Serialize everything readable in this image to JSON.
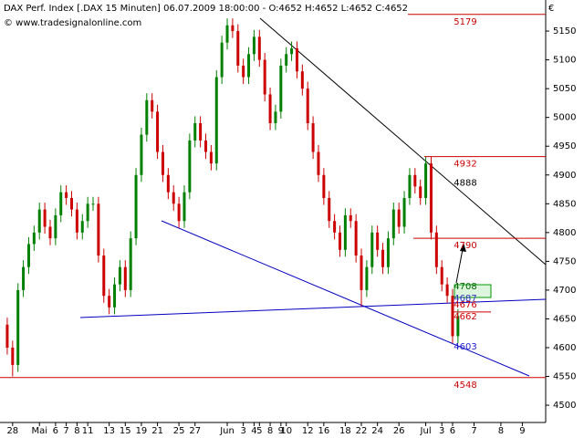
{
  "chart_data": {
    "type": "candlestick",
    "title": "DAX Perf. Index [.DAX  15 Minuten] 06.07.2009 18:00:00 - O:4652 H:4652 L:4652 C:4652",
    "subtitle": "© www.tradesignalonline.com",
    "y_unit": "€",
    "ylim": [
      4470,
      5204
    ],
    "yticks": [
      4500,
      4550,
      4600,
      4650,
      4700,
      4750,
      4800,
      4850,
      4900,
      4950,
      5000,
      5050,
      5100,
      5150
    ],
    "up_color": "#008000",
    "down_color": "#cc0000",
    "categories": [
      null,
      "28",
      null,
      null,
      null,
      null,
      "Mai",
      null,
      null,
      "6",
      null,
      "7",
      null,
      "8",
      null,
      "11",
      null,
      null,
      null,
      "13",
      null,
      null,
      "15",
      null,
      null,
      "19",
      null,
      null,
      "21",
      null,
      null,
      null,
      "25",
      null,
      null,
      "27",
      null,
      null,
      null,
      null,
      null,
      "Jun",
      null,
      null,
      "3",
      null,
      "4",
      "5",
      null,
      "8",
      null,
      "9",
      "10",
      null,
      null,
      null,
      "12",
      null,
      null,
      "16",
      null,
      null,
      null,
      "18",
      null,
      null,
      "22",
      null,
      null,
      "24",
      null,
      null,
      null,
      "26",
      null,
      null,
      null,
      null,
      "Jul",
      null,
      null,
      "3",
      null,
      "6",
      null,
      null,
      null,
      "7",
      null,
      null,
      null,
      null,
      "8",
      null,
      null,
      null,
      "9",
      null,
      null,
      null
    ],
    "open": [
      4640,
      4600,
      4570,
      4700,
      4740,
      4780,
      4800,
      4840,
      4810,
      4790,
      4830,
      4870,
      4860,
      4840,
      4800,
      4820,
      4850,
      4850,
      4760,
      4690,
      4670,
      4710,
      4740,
      4700,
      4790,
      4900,
      4970,
      5030,
      5010,
      4940,
      4900,
      4870,
      4850,
      4820,
      4870,
      4960,
      4990,
      4960,
      4940,
      4920,
      5070,
      5130,
      5160,
      5150,
      5090,
      5070,
      5110,
      5140,
      5100,
      5040,
      4990,
      5010,
      5090,
      5110,
      5120,
      5080,
      5050,
      4990,
      4940,
      4900,
      4860,
      4820,
      4800,
      4770,
      4830,
      4820,
      4760,
      4700,
      4740,
      4800,
      4770,
      4740,
      4790,
      4840,
      4810,
      4860,
      4900,
      4880,
      4860,
      4920,
      4800,
      4740,
      4710,
      4690,
      4620,
      null,
      null,
      null,
      null,
      null,
      null,
      null,
      null,
      null,
      null,
      null,
      null,
      null,
      null,
      null
    ],
    "high": [
      4652,
      4612,
      4712,
      4752,
      4792,
      4812,
      4852,
      4852,
      4822,
      4842,
      4882,
      4882,
      4872,
      4852,
      4832,
      4862,
      4862,
      4862,
      4772,
      4702,
      4722,
      4752,
      4752,
      4802,
      4912,
      4982,
      5042,
      5042,
      5022,
      4952,
      4912,
      4882,
      4862,
      4882,
      4972,
      5002,
      5002,
      4972,
      4952,
      5082,
      5142,
      5172,
      5172,
      5162,
      5102,
      5122,
      5152,
      5152,
      5112,
      5052,
      5022,
      5102,
      5122,
      5132,
      5132,
      5092,
      5062,
      5002,
      4952,
      4912,
      4872,
      4832,
      4812,
      4842,
      4842,
      4832,
      4772,
      4752,
      4812,
      4812,
      4782,
      4802,
      4852,
      4852,
      4872,
      4912,
      4912,
      4892,
      4932,
      4932,
      4812,
      4752,
      4722,
      4702,
      4667,
      null,
      null,
      null,
      null,
      null,
      null,
      null,
      null,
      null,
      null,
      null,
      null,
      null,
      null,
      null
    ],
    "low": [
      4588,
      4550,
      4558,
      4688,
      4728,
      4768,
      4788,
      4798,
      4778,
      4778,
      4818,
      4848,
      4828,
      4788,
      4788,
      4808,
      4838,
      4748,
      4678,
      4658,
      4658,
      4698,
      4688,
      4688,
      4778,
      4888,
      4958,
      4998,
      4928,
      4888,
      4858,
      4838,
      4808,
      4808,
      4858,
      4948,
      4948,
      4928,
      4908,
      4908,
      5058,
      5118,
      5138,
      5078,
      5058,
      5058,
      5098,
      5088,
      5028,
      4978,
      4978,
      4998,
      5078,
      5098,
      5068,
      5038,
      4978,
      4928,
      4888,
      4848,
      4808,
      4788,
      4758,
      4758,
      4808,
      4748,
      4672,
      4688,
      4728,
      4758,
      4728,
      4728,
      4778,
      4798,
      4798,
      4848,
      4868,
      4848,
      4848,
      4788,
      4728,
      4698,
      4678,
      4608,
      4608,
      null,
      null,
      null,
      null,
      null,
      null,
      null,
      null,
      null,
      null,
      null,
      null,
      null,
      null,
      null
    ],
    "close": [
      4600,
      4570,
      4700,
      4740,
      4780,
      4800,
      4840,
      4810,
      4790,
      4830,
      4870,
      4860,
      4840,
      4800,
      4820,
      4850,
      4850,
      4760,
      4690,
      4670,
      4710,
      4740,
      4700,
      4790,
      4900,
      4970,
      5030,
      5010,
      4940,
      4900,
      4870,
      4850,
      4820,
      4870,
      4960,
      4990,
      4960,
      4940,
      4920,
      5070,
      5130,
      5160,
      5150,
      5090,
      5070,
      5110,
      5140,
      5100,
      5040,
      4990,
      5010,
      5090,
      5110,
      5120,
      5080,
      5050,
      4990,
      4940,
      4900,
      4860,
      4820,
      4800,
      4770,
      4830,
      4820,
      4760,
      4700,
      4740,
      4800,
      4770,
      4740,
      4790,
      4840,
      4810,
      4860,
      4900,
      4880,
      4860,
      4920,
      4800,
      4740,
      4710,
      4690,
      4620,
      4655,
      null,
      null,
      null,
      null,
      null,
      null,
      null,
      null,
      null,
      null,
      null,
      null,
      null,
      null,
      null
    ],
    "levels": [
      {
        "value": 5179,
        "color": "#cc0000"
      },
      {
        "value": 4932,
        "color": "#cc0000"
      },
      {
        "value": 4790,
        "color": "#cc0000"
      },
      {
        "value": 4662,
        "color": "#cc0000"
      },
      {
        "value": 4548,
        "color": "#cc0000"
      }
    ],
    "price_labels": [
      {
        "value": 4888,
        "color": "#000000"
      },
      {
        "value": 4708,
        "color": "#006600"
      },
      {
        "value": 4687,
        "color": "#3030c0"
      },
      {
        "value": 4676,
        "color": "#cc0000"
      },
      {
        "value": 4603,
        "color": "#2020d0"
      }
    ]
  }
}
